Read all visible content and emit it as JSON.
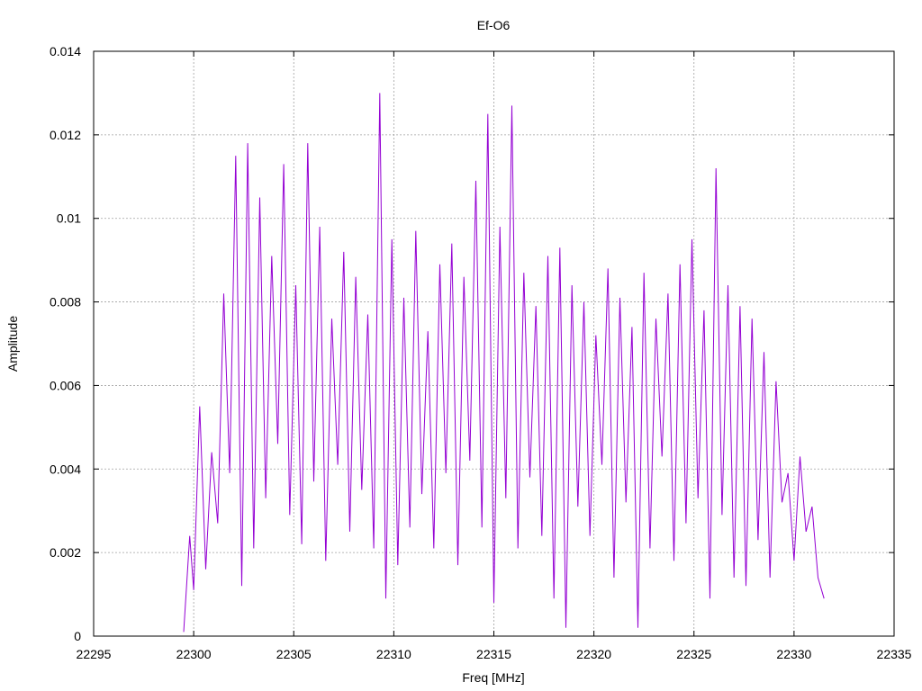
{
  "chart_data": {
    "type": "line",
    "title": "Ef-O6",
    "xlabel": "Freq [MHz]",
    "ylabel": "Amplitude",
    "xlim": [
      22295,
      22335
    ],
    "ylim": [
      0,
      0.014
    ],
    "xticks": [
      22295,
      22300,
      22305,
      22310,
      22315,
      22320,
      22325,
      22330,
      22335
    ],
    "xtick_labels": [
      "22295",
      "22300",
      "22305",
      "22310",
      "22315",
      "22320",
      "22325",
      "22330",
      "22335"
    ],
    "yticks": [
      0,
      0.002,
      0.004,
      0.006,
      0.008,
      0.01,
      0.012,
      0.014
    ],
    "ytick_labels": [
      "0",
      "0.002",
      "0.004",
      "0.006",
      "0.008",
      "0.01",
      "0.012",
      "0.014"
    ],
    "grid": true,
    "line_color": "#9400d3",
    "series": [
      {
        "x": [
          22299.5,
          22299.8,
          22300.0,
          22300.3,
          22300.6,
          22300.9,
          22301.2,
          22301.5,
          22301.8,
          22302.1,
          22302.4,
          22302.7,
          22303.0,
          22303.3,
          22303.6,
          22303.9,
          22304.2,
          22304.5,
          22304.8,
          22305.1,
          22305.4,
          22305.7,
          22306.0,
          22306.3,
          22306.6,
          22306.9,
          22307.2,
          22307.5,
          22307.8,
          22308.1,
          22308.4,
          22308.7,
          22309.0,
          22309.3,
          22309.6,
          22309.9,
          22310.2,
          22310.5,
          22310.8,
          22311.1,
          22311.4,
          22311.7,
          22312.0,
          22312.3,
          22312.6,
          22312.9,
          22313.2,
          22313.5,
          22313.8,
          22314.1,
          22314.4,
          22314.7,
          22315.0,
          22315.3,
          22315.6,
          22315.9,
          22316.2,
          22316.5,
          22316.8,
          22317.1,
          22317.4,
          22317.7,
          22318.0,
          22318.3,
          22318.6,
          22318.9,
          22319.2,
          22319.5,
          22319.8,
          22320.1,
          22320.4,
          22320.7,
          22321.0,
          22321.3,
          22321.6,
          22321.9,
          22322.2,
          22322.5,
          22322.8,
          22323.1,
          22323.4,
          22323.7,
          22324.0,
          22324.3,
          22324.6,
          22324.9,
          22325.2,
          22325.5,
          22325.8,
          22326.1,
          22326.4,
          22326.7,
          22327.0,
          22327.3,
          22327.6,
          22327.9,
          22328.2,
          22328.5,
          22328.8,
          22329.1,
          22329.4,
          22329.7,
          22330.0,
          22330.3,
          22330.6,
          22330.9,
          22331.2,
          22331.5
        ],
        "y": [
          0.0001,
          0.0024,
          0.0011,
          0.0055,
          0.0016,
          0.0044,
          0.0027,
          0.0082,
          0.0039,
          0.0115,
          0.0012,
          0.0118,
          0.0021,
          0.0105,
          0.0033,
          0.0091,
          0.0046,
          0.0113,
          0.0029,
          0.0084,
          0.0022,
          0.0118,
          0.0037,
          0.0098,
          0.0018,
          0.0076,
          0.0041,
          0.0092,
          0.0025,
          0.0086,
          0.0035,
          0.0077,
          0.0021,
          0.013,
          0.0009,
          0.0095,
          0.0017,
          0.0081,
          0.0026,
          0.0097,
          0.0034,
          0.0073,
          0.0021,
          0.0089,
          0.0039,
          0.0094,
          0.0017,
          0.0086,
          0.0042,
          0.0109,
          0.0026,
          0.0125,
          0.0008,
          0.0098,
          0.0033,
          0.0127,
          0.0021,
          0.0087,
          0.0038,
          0.0079,
          0.0024,
          0.0091,
          0.0009,
          0.0093,
          0.0002,
          0.0084,
          0.0031,
          0.008,
          0.0024,
          0.0072,
          0.0041,
          0.0088,
          0.0014,
          0.0081,
          0.0032,
          0.0074,
          0.0002,
          0.0087,
          0.0021,
          0.0076,
          0.0043,
          0.0082,
          0.0018,
          0.0089,
          0.0027,
          0.0095,
          0.0033,
          0.0078,
          0.0009,
          0.0112,
          0.0029,
          0.0084,
          0.0014,
          0.0079,
          0.0012,
          0.0076,
          0.0023,
          0.0068,
          0.0014,
          0.0061,
          0.0032,
          0.0039,
          0.0018,
          0.0043,
          0.0025,
          0.0031,
          0.0014,
          0.0009
        ]
      }
    ]
  }
}
